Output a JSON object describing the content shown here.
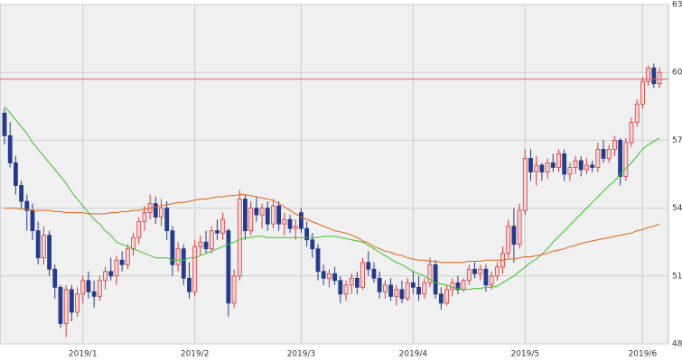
{
  "chart_data": {
    "type": "candlestick",
    "categories": [
      null,
      null,
      null,
      null,
      null,
      null,
      null,
      null,
      null,
      null,
      null,
      null,
      null,
      null,
      "2019/1",
      null,
      null,
      null,
      null,
      null,
      null,
      null,
      null,
      null,
      null,
      null,
      null,
      null,
      null,
      null,
      null,
      null,
      null,
      null,
      "2019/2",
      null,
      null,
      null,
      null,
      null,
      null,
      null,
      null,
      null,
      null,
      null,
      null,
      null,
      null,
      null,
      null,
      null,
      null,
      "2019/3",
      null,
      null,
      null,
      null,
      null,
      null,
      null,
      null,
      null,
      null,
      null,
      null,
      null,
      null,
      null,
      null,
      null,
      null,
      null,
      "2019/4",
      null,
      null,
      null,
      null,
      null,
      null,
      null,
      null,
      null,
      null,
      null,
      null,
      null,
      null,
      null,
      null,
      null,
      null,
      null,
      "2019/5",
      null,
      null,
      null,
      null,
      null,
      null,
      null,
      null,
      null,
      null,
      null,
      null,
      null,
      null,
      null,
      null,
      null,
      null,
      null,
      null,
      "2019/6",
      null,
      null,
      null
    ],
    "candles": [
      [
        58.2,
        58.4,
        56.8,
        57.2
      ],
      [
        57.2,
        57.8,
        55.8,
        56.0
      ],
      [
        56.0,
        56.3,
        54.6,
        55.0
      ],
      [
        55.0,
        55.2,
        54.0,
        54.3
      ],
      [
        54.3,
        54.6,
        53.0,
        53.9
      ],
      [
        53.9,
        54.2,
        52.6,
        53.0
      ],
      [
        53.0,
        53.4,
        51.5,
        51.8
      ],
      [
        51.8,
        53.2,
        51.5,
        52.8
      ],
      [
        52.8,
        53.0,
        51.0,
        51.3
      ],
      [
        51.3,
        51.5,
        50.0,
        50.5
      ],
      [
        50.5,
        50.6,
        48.7,
        48.9
      ],
      [
        48.9,
        50.6,
        48.3,
        50.4
      ],
      [
        50.4,
        50.6,
        49.0,
        49.4
      ],
      [
        49.4,
        50.5,
        49.2,
        50.2
      ],
      [
        50.2,
        51.0,
        49.8,
        50.8
      ],
      [
        50.8,
        51.2,
        50.0,
        50.3
      ],
      [
        50.3,
        50.8,
        49.6,
        50.1
      ],
      [
        50.1,
        51.0,
        49.9,
        50.8
      ],
      [
        50.8,
        51.4,
        50.4,
        51.2
      ],
      [
        51.2,
        51.8,
        50.8,
        51.0
      ],
      [
        51.0,
        51.9,
        50.6,
        51.7
      ],
      [
        51.7,
        52.1,
        51.2,
        51.5
      ],
      [
        51.5,
        52.4,
        51.3,
        52.2
      ],
      [
        52.2,
        52.9,
        51.9,
        52.7
      ],
      [
        52.7,
        53.6,
        52.4,
        53.4
      ],
      [
        53.4,
        54.1,
        53.0,
        53.8
      ],
      [
        53.8,
        54.6,
        53.5,
        54.2
      ],
      [
        54.2,
        54.5,
        53.3,
        53.6
      ],
      [
        53.6,
        54.4,
        53.2,
        54.0
      ],
      [
        54.0,
        54.3,
        52.6,
        53.0
      ],
      [
        53.0,
        53.2,
        51.0,
        51.5
      ],
      [
        51.5,
        52.5,
        51.2,
        52.2
      ],
      [
        52.2,
        52.4,
        50.6,
        50.9
      ],
      [
        50.9,
        51.6,
        50.0,
        50.3
      ],
      [
        50.3,
        52.6,
        50.1,
        52.3
      ],
      [
        52.3,
        52.8,
        51.9,
        52.5
      ],
      [
        52.5,
        53.0,
        52.0,
        52.2
      ],
      [
        52.2,
        53.2,
        52.0,
        53.0
      ],
      [
        53.0,
        53.5,
        52.6,
        52.9
      ],
      [
        52.9,
        53.8,
        52.6,
        53.5
      ],
      [
        53.0,
        53.1,
        49.2,
        49.8
      ],
      [
        49.8,
        51.3,
        49.6,
        51.0
      ],
      [
        51.0,
        54.8,
        50.8,
        54.4
      ],
      [
        54.4,
        54.6,
        52.6,
        53.0
      ],
      [
        53.0,
        54.3,
        52.8,
        54.0
      ],
      [
        54.0,
        54.5,
        53.4,
        53.7
      ],
      [
        53.7,
        54.2,
        53.1,
        54.0
      ],
      [
        54.0,
        54.3,
        53.0,
        53.3
      ],
      [
        53.3,
        54.4,
        53.1,
        54.1
      ],
      [
        54.1,
        54.3,
        53.0,
        53.3
      ],
      [
        53.3,
        53.8,
        52.8,
        53.5
      ],
      [
        53.5,
        53.7,
        52.9,
        53.1
      ],
      [
        53.1,
        53.5,
        52.6,
        53.2
      ],
      [
        53.8,
        54.0,
        52.9,
        53.1
      ],
      [
        53.1,
        53.4,
        52.3,
        52.6
      ],
      [
        52.6,
        52.9,
        51.8,
        52.2
      ],
      [
        52.2,
        52.4,
        50.8,
        51.2
      ],
      [
        51.2,
        51.5,
        50.6,
        50.9
      ],
      [
        50.9,
        51.3,
        50.5,
        51.1
      ],
      [
        51.1,
        51.4,
        50.6,
        50.8
      ],
      [
        50.8,
        51.0,
        49.8,
        50.2
      ],
      [
        50.2,
        50.8,
        49.9,
        50.6
      ],
      [
        50.6,
        51.1,
        50.2,
        50.9
      ],
      [
        50.9,
        51.2,
        50.2,
        50.5
      ],
      [
        50.5,
        51.8,
        50.4,
        51.6
      ],
      [
        51.6,
        52.1,
        51.0,
        51.3
      ],
      [
        51.3,
        51.6,
        50.7,
        50.9
      ],
      [
        50.9,
        51.2,
        50.0,
        50.3
      ],
      [
        50.3,
        50.8,
        50.0,
        50.6
      ],
      [
        50.6,
        50.9,
        49.9,
        50.1
      ],
      [
        50.1,
        50.6,
        49.7,
        50.4
      ],
      [
        50.4,
        50.8,
        49.8,
        50.0
      ],
      [
        50.0,
        50.9,
        49.9,
        50.7
      ],
      [
        50.7,
        51.2,
        50.2,
        50.5
      ],
      [
        50.5,
        51.0,
        49.9,
        50.2
      ],
      [
        50.2,
        50.9,
        50.0,
        50.7
      ],
      [
        50.7,
        51.8,
        50.5,
        51.5
      ],
      [
        51.5,
        51.7,
        50.0,
        50.2
      ],
      [
        50.2,
        50.5,
        49.5,
        49.8
      ],
      [
        49.8,
        50.6,
        49.7,
        50.4
      ],
      [
        50.4,
        50.9,
        50.1,
        50.7
      ],
      [
        50.7,
        51.0,
        50.2,
        50.4
      ],
      [
        50.4,
        50.9,
        50.3,
        50.8
      ],
      [
        50.8,
        51.5,
        50.6,
        51.3
      ],
      [
        51.3,
        51.6,
        50.9,
        51.1
      ],
      [
        51.1,
        51.5,
        50.8,
        51.3
      ],
      [
        51.3,
        51.5,
        50.3,
        50.6
      ],
      [
        50.6,
        51.2,
        50.4,
        51.0
      ],
      [
        51.0,
        51.6,
        50.8,
        51.4
      ],
      [
        51.4,
        52.3,
        51.1,
        52.0
      ],
      [
        52.0,
        53.5,
        51.8,
        53.2
      ],
      [
        53.2,
        54.0,
        51.6,
        52.4
      ],
      [
        52.4,
        54.2,
        52.2,
        53.9
      ],
      [
        53.9,
        56.6,
        53.7,
        56.2
      ],
      [
        56.2,
        56.6,
        55.2,
        55.6
      ],
      [
        55.6,
        56.3,
        55.0,
        55.9
      ],
      [
        55.9,
        56.0,
        55.2,
        55.6
      ],
      [
        55.6,
        56.2,
        55.3,
        56.0
      ],
      [
        56.0,
        56.4,
        55.6,
        55.8
      ],
      [
        55.8,
        56.6,
        55.6,
        56.4
      ],
      [
        56.4,
        56.6,
        55.2,
        55.5
      ],
      [
        55.5,
        56.0,
        55.2,
        55.8
      ],
      [
        55.8,
        56.3,
        55.5,
        56.1
      ],
      [
        56.1,
        56.3,
        55.4,
        55.7
      ],
      [
        55.7,
        56.2,
        55.5,
        55.9
      ],
      [
        55.9,
        56.1,
        55.6,
        55.8
      ],
      [
        55.8,
        56.9,
        55.6,
        56.6
      ],
      [
        56.6,
        57.0,
        56.0,
        56.2
      ],
      [
        56.2,
        56.8,
        56.0,
        56.6
      ],
      [
        56.6,
        57.2,
        56.3,
        57.0
      ],
      [
        57.0,
        57.1,
        55.0,
        55.4
      ],
      [
        55.4,
        57.1,
        55.2,
        56.9
      ],
      [
        56.9,
        58.0,
        56.7,
        57.8
      ],
      [
        57.8,
        58.8,
        57.6,
        58.6
      ],
      [
        58.6,
        59.8,
        58.4,
        59.6
      ],
      [
        59.6,
        60.3,
        59.4,
        60.2
      ],
      [
        60.2,
        60.4,
        59.3,
        59.5
      ],
      [
        59.5,
        60.2,
        59.3,
        60.0
      ]
    ],
    "up_color": "#d9383a",
    "down_color": "#253a8c",
    "series": [
      {
        "color": "#3fbf2a",
        "values": [
          58.5,
          58.2,
          57.9,
          57.6,
          57.3,
          56.9,
          56.6,
          56.3,
          56.0,
          55.7,
          55.4,
          55.1,
          54.7,
          54.4,
          54.1,
          53.8,
          53.5,
          53.3,
          53.0,
          52.8,
          52.5,
          52.4,
          52.3,
          52.2,
          52.1,
          52.0,
          51.9,
          51.8,
          51.8,
          51.8,
          51.7,
          51.7,
          51.7,
          51.8,
          51.8,
          51.9,
          52.0,
          52.1,
          52.2,
          52.3,
          52.4,
          52.5,
          52.6,
          52.7,
          52.7,
          52.75,
          52.75,
          52.7,
          52.7,
          52.7,
          52.7,
          52.7,
          52.7,
          52.7,
          52.7,
          52.7,
          52.7,
          52.75,
          52.75,
          52.75,
          52.7,
          52.65,
          52.6,
          52.55,
          52.5,
          52.35,
          52.2,
          52.05,
          51.9,
          51.75,
          51.6,
          51.5,
          51.35,
          51.2,
          51.1,
          51.0,
          50.85,
          50.7,
          50.65,
          50.6,
          50.5,
          50.45,
          50.4,
          50.4,
          50.45,
          50.45,
          50.5,
          50.5,
          50.55,
          50.7,
          50.85,
          51.0,
          51.2,
          51.4,
          51.6,
          51.75,
          51.95,
          52.2,
          52.5,
          52.75,
          53.0,
          53.25,
          53.5,
          53.75,
          54.0,
          54.25,
          54.5,
          54.75,
          55.0,
          55.2,
          55.5,
          55.75,
          56.0,
          56.3,
          56.6,
          56.8,
          56.95,
          57.1
        ]
      },
      {
        "color": "#e0621a",
        "values": [
          54.0,
          54.0,
          54.0,
          53.95,
          53.95,
          53.9,
          53.9,
          53.9,
          53.9,
          53.85,
          53.85,
          53.8,
          53.8,
          53.8,
          53.8,
          53.75,
          53.75,
          53.75,
          53.75,
          53.8,
          53.8,
          53.85,
          53.85,
          53.9,
          53.9,
          53.95,
          54.0,
          54.05,
          54.1,
          54.15,
          54.2,
          54.25,
          54.25,
          54.3,
          54.35,
          54.4,
          54.4,
          54.45,
          54.5,
          54.5,
          54.55,
          54.55,
          54.6,
          54.6,
          54.55,
          54.5,
          54.45,
          54.4,
          54.35,
          54.2,
          54.05,
          53.9,
          53.75,
          53.6,
          53.5,
          53.4,
          53.3,
          53.2,
          53.1,
          53.0,
          52.95,
          52.9,
          52.8,
          52.7,
          52.55,
          52.45,
          52.3,
          52.2,
          52.1,
          52.05,
          51.95,
          51.9,
          51.8,
          51.75,
          51.7,
          51.7,
          51.65,
          51.65,
          51.6,
          51.6,
          51.6,
          51.6,
          51.6,
          51.65,
          51.65,
          51.65,
          51.7,
          51.7,
          51.7,
          51.7,
          51.75,
          51.75,
          51.8,
          51.85,
          51.85,
          51.9,
          51.95,
          52.0,
          52.1,
          52.15,
          52.2,
          52.3,
          52.35,
          52.45,
          52.5,
          52.55,
          52.6,
          52.65,
          52.7,
          52.75,
          52.8,
          52.85,
          52.9,
          53.0,
          53.05,
          53.15,
          53.2,
          53.3
        ]
      }
    ],
    "reference_line": {
      "value": 59.7,
      "color": "#e06060"
    },
    "ylim": [
      48,
      63
    ],
    "yticks": [
      48,
      51,
      54,
      57,
      60,
      63
    ],
    "grid": true,
    "axis_side": "right"
  }
}
